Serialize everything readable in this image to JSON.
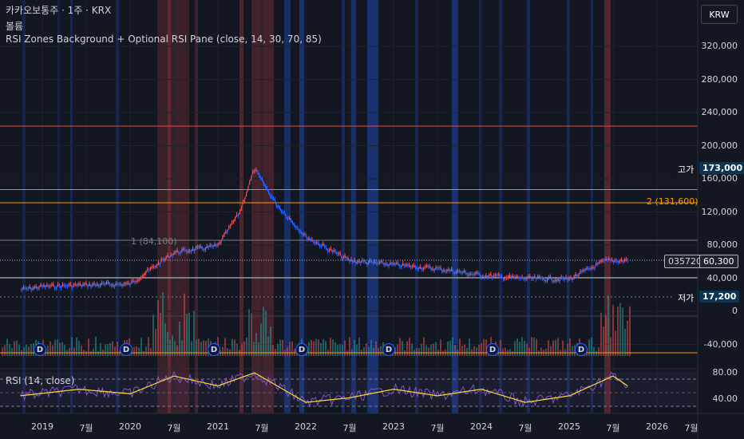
{
  "header": {
    "symbol_line": "카카오보통주 · 1주 · KRX",
    "volume_label": "볼륨",
    "indicator_line": "RSI Zones Background + Optional RSI Pane (close, 14, 30, 70, 85)"
  },
  "currency_button": "KRW",
  "price_axis": [
    "320,000",
    "280,000",
    "240,000",
    "200,000",
    "160,000",
    "120,000",
    "80,000",
    "40,000",
    "0",
    "-40,000"
  ],
  "volume_axis_ticks": [
    "0",
    "-40,000"
  ],
  "rsi_axis": [
    "80.00",
    "40.00"
  ],
  "rsi_legend": "RSI (14, close)",
  "time_axis": [
    "2019",
    "7월",
    "2020",
    "7월",
    "2021",
    "7월",
    "2022",
    "7월",
    "2023",
    "7월",
    "2024",
    "7월",
    "2025",
    "7월",
    "2026",
    "7월"
  ],
  "tags": {
    "high_label": "고가",
    "high_value": "173,000",
    "low_label": "저가",
    "low_value": "17,200",
    "symbol_code": "035720",
    "last_price": "60,300"
  },
  "levels": {
    "fib1": "1 (84,100)",
    "fib2": "2 (131,600)"
  },
  "dividend_marker": "D",
  "colors": {
    "background": "#131722",
    "up": "#ef5350",
    "down": "#2962ff",
    "high_line": "#26c6da",
    "fib2_line": "#ff9800",
    "resistance_line": "#f44336",
    "rsi_line": "#7e57c2",
    "rsi_ma": "#fdd835"
  },
  "chart_data": {
    "type": "line",
    "title": "",
    "xlabel": "",
    "ylabel": "",
    "ylim": [
      -40000,
      320000
    ],
    "x": [
      "2018-10",
      "2019-01",
      "2019-07",
      "2020-01",
      "2020-07",
      "2021-01",
      "2021-04",
      "2021-06",
      "2021-09",
      "2022-01",
      "2022-07",
      "2023-01",
      "2023-07",
      "2024-01",
      "2024-07",
      "2025-01",
      "2025-06",
      "2025-09"
    ],
    "series": [
      {
        "name": "",
        "values": [
          24000,
          28000,
          30000,
          31000,
          70000,
          78000,
          120000,
          173000,
          130000,
          90000,
          60000,
          55000,
          50000,
          42000,
          38000,
          37000,
          60000,
          60300
        ]
      }
    ],
    "reference_lines": {
      "high": 173000,
      "low": 17200,
      "fib1": 84100,
      "fib2": 131600
    },
    "rsi": {
      "ylim": [
        20,
        90
      ],
      "x": [
        "2018-10",
        "2019-06",
        "2020-01",
        "2020-07",
        "2021-01",
        "2021-06",
        "2022-01",
        "2022-07",
        "2023-01",
        "2023-07",
        "2024-01",
        "2024-07",
        "2025-01",
        "2025-07",
        "2025-09"
      ],
      "values": [
        45,
        55,
        48,
        75,
        60,
        80,
        35,
        42,
        55,
        45,
        55,
        35,
        45,
        75,
        60
      ]
    }
  }
}
